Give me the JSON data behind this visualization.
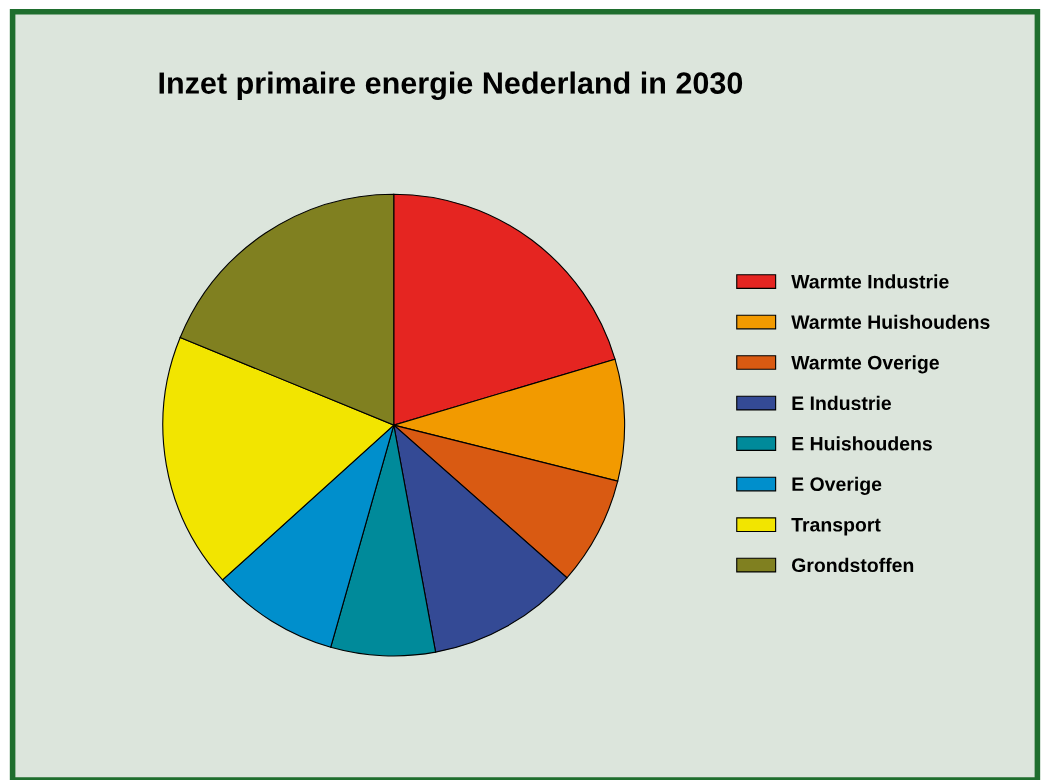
{
  "chart_data": {
    "type": "pie",
    "title": "Inzet primaire energie Nederland in 2030",
    "categories": [
      "Warmte Industrie",
      "Warmte Huishoudens",
      "Warmte Overige",
      "E Industrie",
      "E Huishoudens",
      "E Overige",
      "Transport",
      "Grondstoffen"
    ],
    "values": [
      20.4,
      8.5,
      7.6,
      10.6,
      7.3,
      8.9,
      17.9,
      18.8
    ],
    "colors": [
      "#e52521",
      "#f29a00",
      "#d95a12",
      "#344a95",
      "#008a9a",
      "#008fcc",
      "#f2e500",
      "#808020"
    ],
    "legend": "right"
  }
}
